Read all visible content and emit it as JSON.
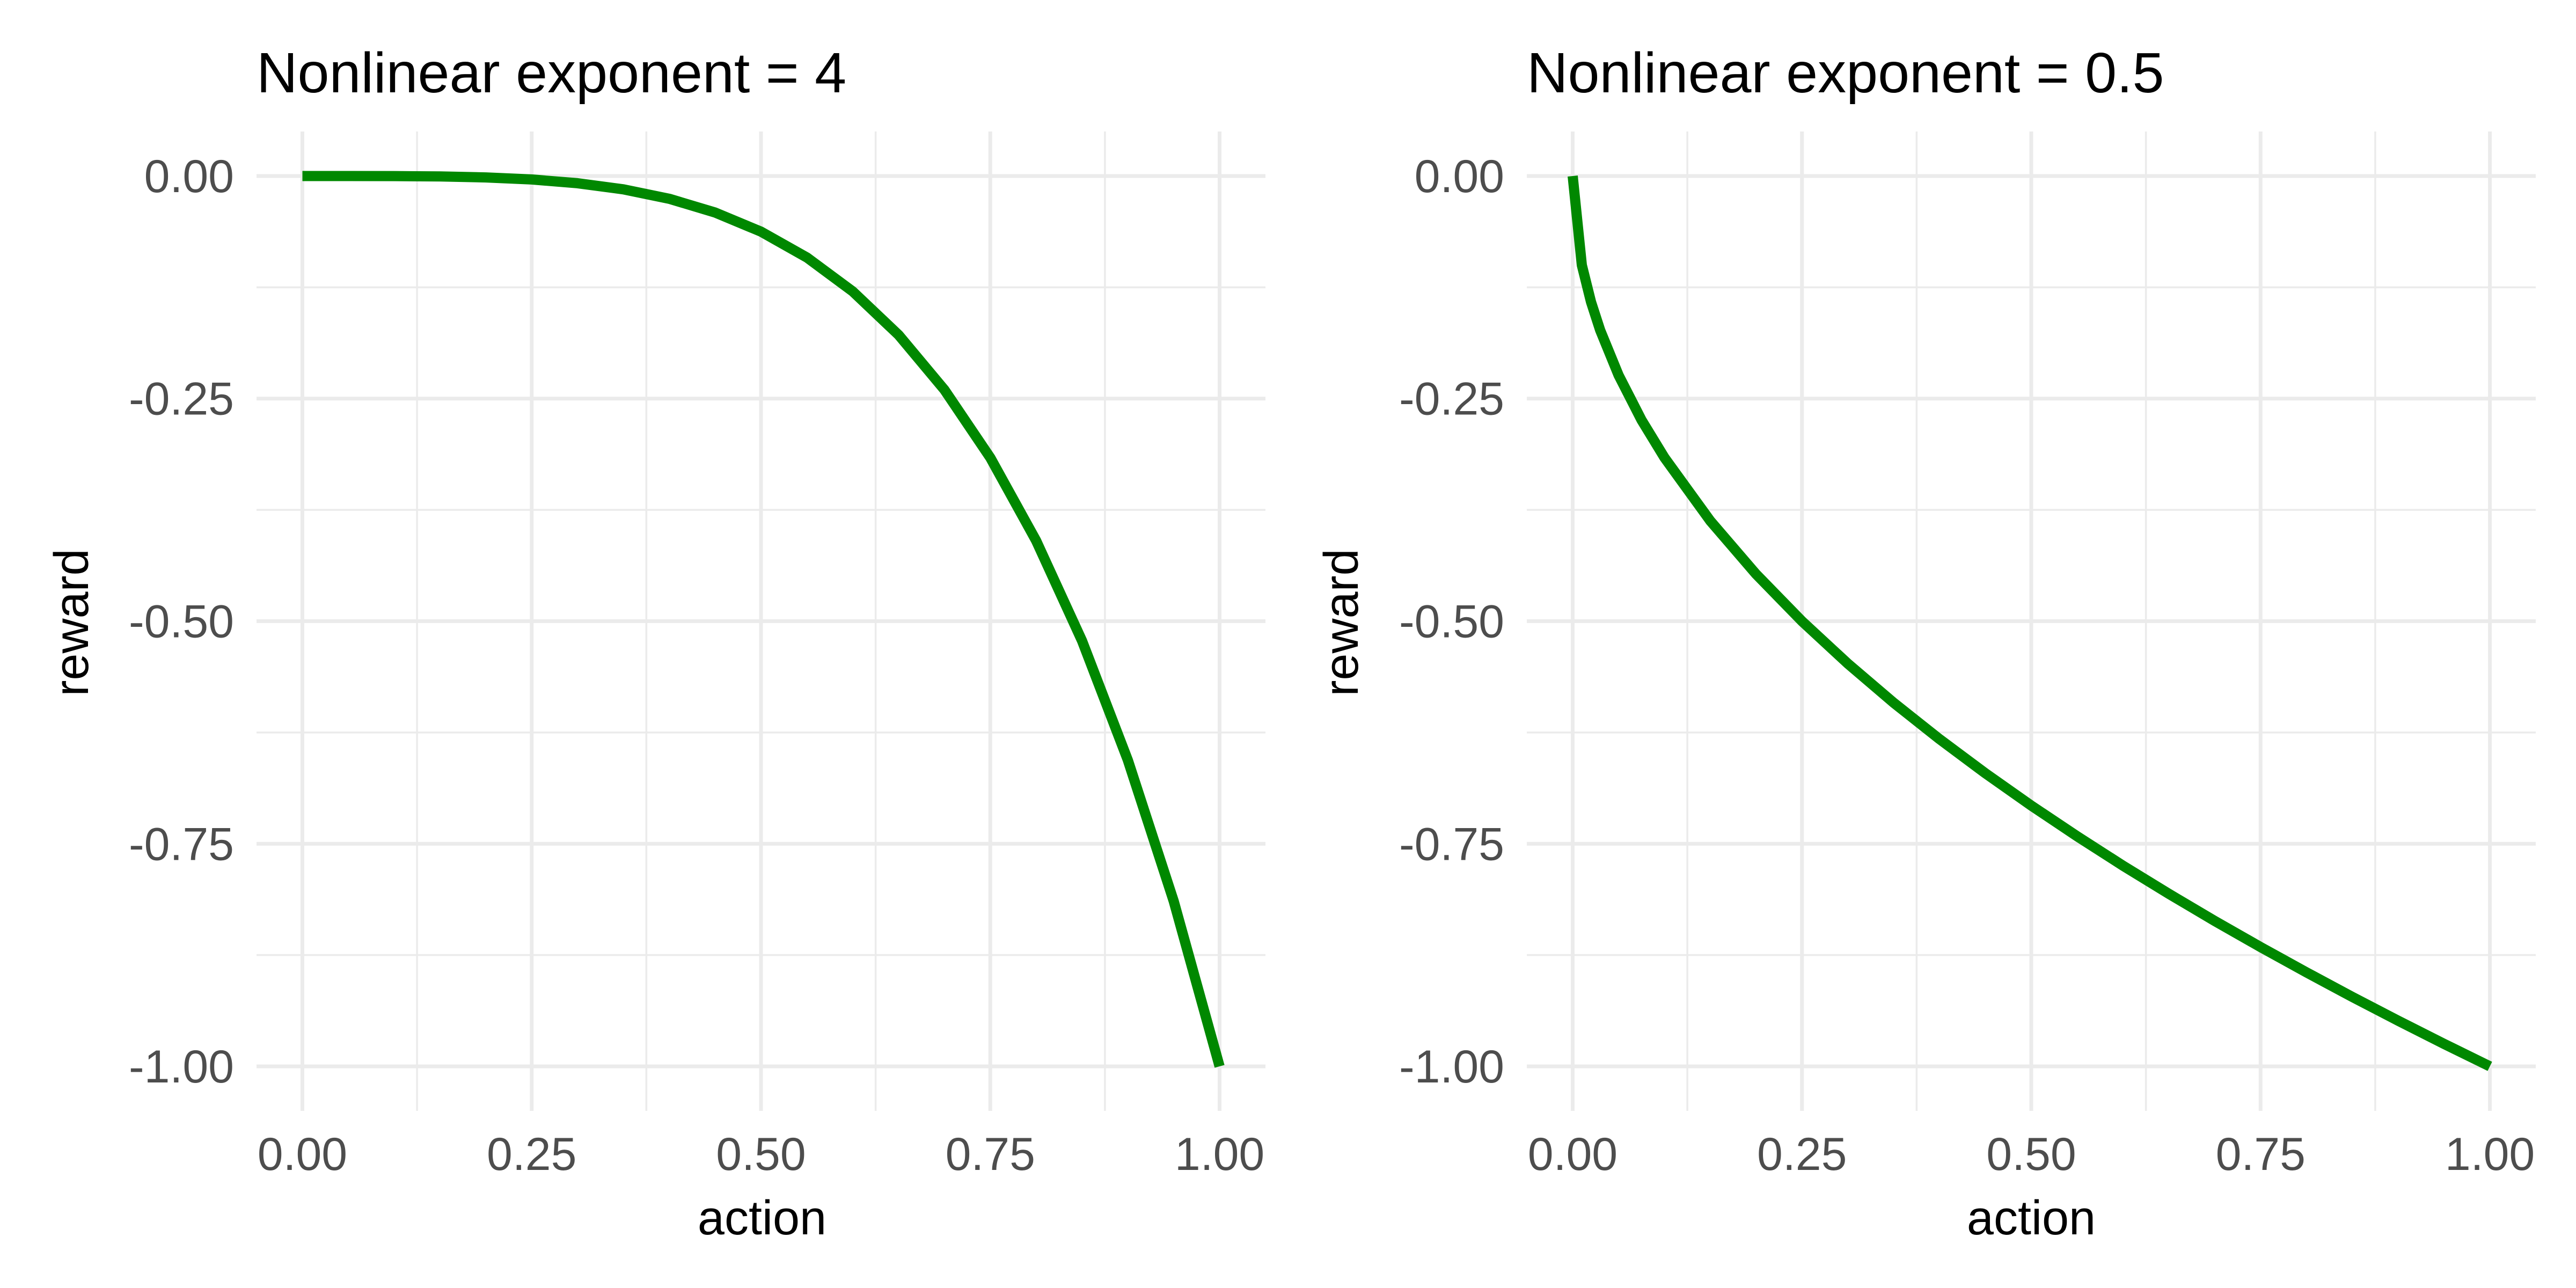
{
  "colors": {
    "series": "#008800",
    "grid": "#ebebeb",
    "tick_text": "#4d4d4d",
    "background": "#ffffff"
  },
  "chart_data": [
    {
      "type": "line",
      "title": "Nonlinear exponent = 4",
      "xlabel": "action",
      "ylabel": "reward",
      "xlim": [
        -0.05,
        1.05
      ],
      "ylim": [
        -1.05,
        0.05
      ],
      "x_ticks": [
        0,
        0.25,
        0.5,
        0.75,
        1
      ],
      "x_tick_labels": [
        "0.00",
        "0.25",
        "0.50",
        "0.75",
        "1.00"
      ],
      "y_ticks": [
        0,
        -0.25,
        -0.5,
        -0.75,
        -1
      ],
      "y_tick_labels": [
        "0.00",
        "-0.25",
        "-0.50",
        "-0.75",
        "-1.00"
      ],
      "grid": true,
      "series": [
        {
          "x": [
            0,
            0.05,
            0.1,
            0.15,
            0.2,
            0.25,
            0.3,
            0.35,
            0.4,
            0.45,
            0.5,
            0.55,
            0.6,
            0.65,
            0.7,
            0.75,
            0.8,
            0.85,
            0.9,
            0.95,
            1
          ],
          "y": [
            0,
            -6.3e-06,
            -0.0001,
            -0.0005,
            -0.0016,
            -0.0039,
            -0.0081,
            -0.015,
            -0.0256,
            -0.041,
            -0.0625,
            -0.0915,
            -0.1296,
            -0.1785,
            -0.2401,
            -0.3164,
            -0.4096,
            -0.522,
            -0.6561,
            -0.8145,
            -1
          ]
        }
      ]
    },
    {
      "type": "line",
      "title": "Nonlinear exponent = 0.5",
      "xlabel": "action",
      "ylabel": "reward",
      "xlim": [
        -0.05,
        1.05
      ],
      "ylim": [
        -1.05,
        0.05
      ],
      "x_ticks": [
        0,
        0.25,
        0.5,
        0.75,
        1
      ],
      "x_tick_labels": [
        "0.00",
        "0.25",
        "0.50",
        "0.75",
        "1.00"
      ],
      "y_ticks": [
        0,
        -0.25,
        -0.5,
        -0.75,
        -1
      ],
      "y_tick_labels": [
        "0.00",
        "-0.25",
        "-0.50",
        "-0.75",
        "-1.00"
      ],
      "grid": true,
      "series": [
        {
          "x": [
            0,
            0.01,
            0.02,
            0.03,
            0.05,
            0.075,
            0.1,
            0.15,
            0.2,
            0.25,
            0.3,
            0.35,
            0.4,
            0.45,
            0.5,
            0.55,
            0.6,
            0.65,
            0.7,
            0.75,
            0.8,
            0.85,
            0.9,
            0.95,
            1
          ],
          "y": [
            0,
            -0.1,
            -0.1414,
            -0.1732,
            -0.2236,
            -0.2739,
            -0.3162,
            -0.3873,
            -0.4472,
            -0.5,
            -0.5477,
            -0.5916,
            -0.6325,
            -0.6708,
            -0.7071,
            -0.7416,
            -0.7746,
            -0.8062,
            -0.8367,
            -0.866,
            -0.8944,
            -0.922,
            -0.9487,
            -0.9747,
            -1
          ]
        }
      ]
    }
  ]
}
